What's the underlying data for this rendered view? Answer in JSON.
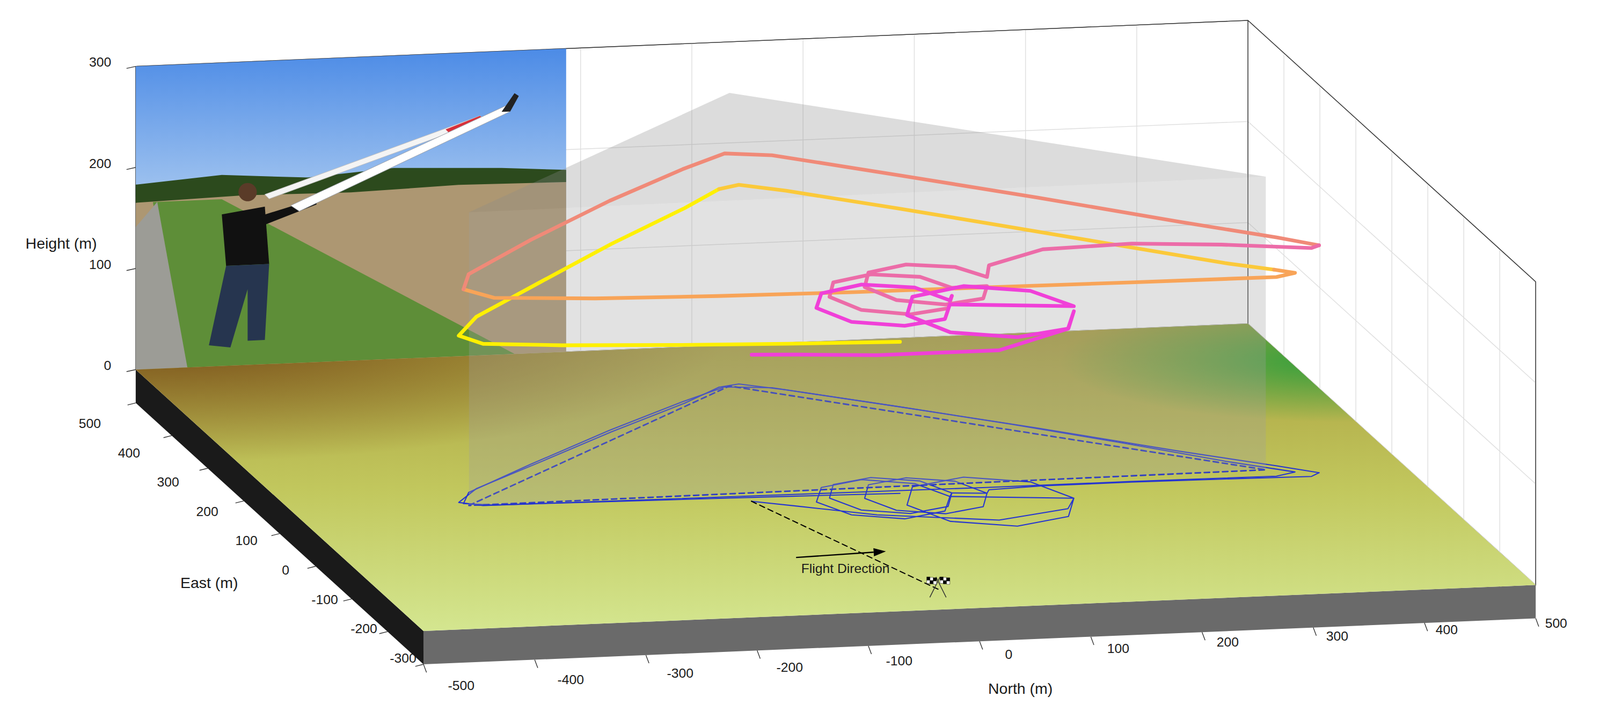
{
  "chart_data": {
    "type": "line3d",
    "xlabel": "North (m)",
    "ylabel": "East (m)",
    "zlabel": "Height (m)",
    "xlim": [
      -500,
      500
    ],
    "xticks": [
      -500,
      -400,
      -300,
      -200,
      -100,
      0,
      100,
      200,
      300,
      400,
      500
    ],
    "ylim": [
      -300,
      500
    ],
    "yticks": [
      -300,
      -200,
      -100,
      0,
      100,
      200,
      300,
      400,
      500
    ],
    "zlim": [
      0,
      300
    ],
    "zticks": [
      0,
      100,
      200,
      300
    ],
    "series": [
      {
        "color": "#fff000",
        "line_style": "solid",
        "values": [
          [
            40,
            45,
            150
          ],
          [
            -60,
            50,
            151
          ],
          [
            -160,
            54,
            153
          ],
          [
            -260,
            58,
            156
          ],
          [
            -330,
            60,
            160
          ],
          [
            -348,
            72,
            165
          ],
          [
            -320,
            110,
            170
          ],
          [
            -240,
            180,
            178
          ],
          [
            -150,
            260,
            186
          ],
          [
            -60,
            335,
            193
          ],
          [
            -15,
            378,
            196
          ]
        ]
      },
      {
        "color": "#fbc93a",
        "line_style": "solid",
        "values": [
          [
            -15,
            378,
            196
          ],
          [
            5,
            385,
            197
          ],
          [
            40,
            362,
            197
          ],
          [
            120,
            300,
            196
          ],
          [
            200,
            235,
            195
          ],
          [
            280,
            165,
            195
          ],
          [
            350,
            100,
            196
          ],
          [
            385,
            72,
            197
          ]
        ]
      },
      {
        "color": "#f8a458",
        "line_style": "solid",
        "values": [
          [
            385,
            72,
            197
          ],
          [
            400,
            60,
            197
          ],
          [
            380,
            50,
            197
          ],
          [
            250,
            52,
            197
          ],
          [
            120,
            52,
            198
          ],
          [
            0,
            54,
            198
          ],
          [
            -120,
            56,
            199
          ],
          [
            -230,
            58,
            201
          ],
          [
            -320,
            60,
            205
          ],
          [
            -345,
            68,
            212
          ]
        ]
      },
      {
        "color": "#f08a78",
        "line_style": "solid",
        "values": [
          [
            -345,
            68,
            212
          ],
          [
            -330,
            100,
            216
          ],
          [
            -250,
            175,
            222
          ],
          [
            -150,
            265,
            227
          ],
          [
            -60,
            340,
            230
          ],
          [
            -10,
            378,
            231
          ],
          [
            30,
            370,
            230
          ],
          [
            120,
            300,
            229
          ],
          [
            220,
            220,
            228
          ],
          [
            320,
            135,
            227
          ],
          [
            390,
            80,
            226
          ],
          [
            420,
            55,
            225
          ]
        ]
      },
      {
        "color": "#ec6ca8",
        "line_style": "solid",
        "values": [
          [
            420,
            55,
            225
          ],
          [
            410,
            45,
            226
          ],
          [
            330,
            48,
            232
          ],
          [
            250,
            50,
            236
          ],
          [
            170,
            50,
            234
          ],
          [
            120,
            45,
            222
          ],
          [
            115,
            35,
            214
          ],
          [
            99,
            74,
            212
          ],
          [
            60,
            90,
            211
          ],
          [
            21,
            74,
            210
          ],
          [
            5,
            35,
            209
          ],
          [
            21,
            -4,
            208
          ],
          [
            60,
            -20,
            207
          ],
          [
            99,
            -4,
            206
          ],
          [
            115,
            35,
            205
          ],
          [
            85,
            40,
            203
          ],
          [
            69,
            79,
            202
          ],
          [
            30,
            95,
            201
          ],
          [
            -9,
            79,
            200
          ],
          [
            -25,
            40,
            199
          ],
          [
            -9,
            1,
            198
          ],
          [
            30,
            -15,
            197
          ],
          [
            69,
            1,
            196
          ],
          [
            85,
            40,
            195
          ]
        ]
      },
      {
        "color": "#f040d8",
        "line_style": "solid",
        "values": [
          [
            85,
            40,
            195
          ],
          [
            80,
            30,
            194
          ],
          [
            62,
            72,
            194
          ],
          [
            20,
            90,
            193
          ],
          [
            -22,
            72,
            192
          ],
          [
            -40,
            30,
            192
          ],
          [
            -22,
            -12,
            191
          ],
          [
            20,
            -30,
            191
          ],
          [
            62,
            -12,
            190
          ],
          [
            80,
            30,
            190
          ],
          [
            185,
            10,
            190
          ],
          [
            163,
            63,
            189
          ],
          [
            110,
            85,
            189
          ],
          [
            57,
            63,
            188
          ],
          [
            35,
            10,
            188
          ],
          [
            57,
            -43,
            187
          ],
          [
            110,
            -65,
            187
          ],
          [
            163,
            -43,
            186
          ],
          [
            185,
            10,
            185
          ],
          [
            170,
            -20,
            178
          ],
          [
            100,
            -45,
            168
          ],
          [
            0,
            -15,
            158
          ],
          [
            -60,
            20,
            150
          ],
          [
            -95,
            40,
            145
          ]
        ]
      }
    ],
    "ground_track": {
      "color": "#2535d0",
      "line_style": "solid"
    },
    "course": {
      "color": "#1f2fc8",
      "line_style": "dashed",
      "height": 290,
      "values": [
        [
          -342,
          62
        ],
        [
          -5,
          380
        ],
        [
          377,
          70
        ],
        [
          -342,
          62
        ]
      ]
    },
    "start_line": {
      "color": "#000000",
      "line_style": "dashed",
      "values": [
        [
          -18,
          -240
        ],
        [
          -96,
          43
        ]
      ]
    },
    "annotations": [
      {
        "text": "Flight Direction",
        "at": [
          -78,
          -168
        ],
        "arrow": [
          [
            -110,
            -130
          ],
          [
            -27,
            -123
          ]
        ]
      }
    ]
  }
}
